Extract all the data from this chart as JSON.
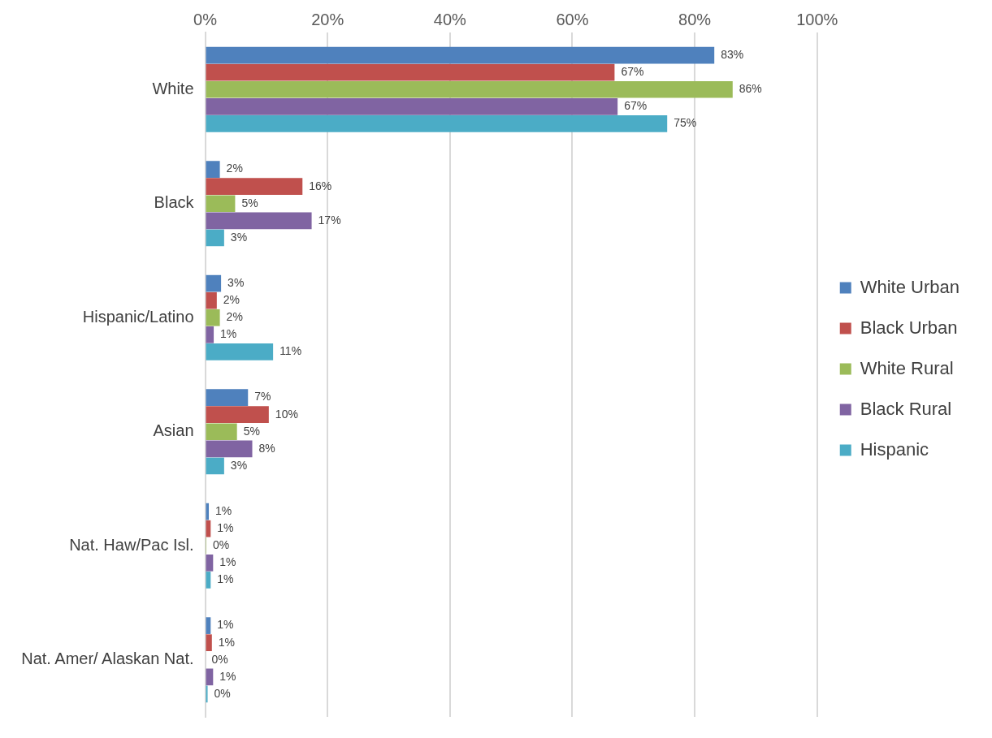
{
  "chart_data": {
    "type": "bar",
    "orientation": "horizontal",
    "categories": [
      "White",
      "Black",
      "Hispanic/Latino",
      "Asian",
      "Nat. Haw/Pac Isl.",
      "Nat. Amer/ Alaskan Nat."
    ],
    "series": [
      {
        "name": "White Urban",
        "color": "#4f81bd",
        "values": [
          83.2,
          2.4,
          2.6,
          7,
          0.6,
          0.9
        ],
        "value_labels": [
          "83%",
          "2%",
          "3%",
          "7%",
          "1%",
          "1%"
        ]
      },
      {
        "name": "Black Urban",
        "color": "#c0504d",
        "values": [
          66.9,
          15.9,
          1.9,
          10.4,
          0.9,
          1.1
        ],
        "value_labels": [
          "67%",
          "16%",
          "2%",
          "10%",
          "1%",
          "1%"
        ]
      },
      {
        "name": "White Rural",
        "color": "#9bbb59",
        "values": [
          86.2,
          4.9,
          2.4,
          5.2,
          0.2,
          0
        ],
        "value_labels": [
          "86%",
          "5%",
          "2%",
          "5%",
          "0%",
          "0%"
        ]
      },
      {
        "name": "Black Rural",
        "color": "#8064a2",
        "values": [
          67.4,
          17.4,
          1.4,
          7.7,
          1.3,
          1.3
        ],
        "value_labels": [
          "67%",
          "17%",
          "1%",
          "8%",
          "1%",
          "1%"
        ]
      },
      {
        "name": "Hispanic",
        "color": "#4bacc6",
        "values": [
          75.5,
          3.1,
          11.1,
          3.1,
          0.9,
          0.4
        ],
        "value_labels": [
          "75%",
          "3%",
          "11%",
          "3%",
          "1%",
          "0%"
        ]
      }
    ],
    "xlim": [
      0,
      100
    ],
    "xticks": [
      {
        "value": 0,
        "label": "0%"
      },
      {
        "value": 20,
        "label": "20%"
      },
      {
        "value": 40,
        "label": "40%"
      },
      {
        "value": 60,
        "label": "60%"
      },
      {
        "value": 80,
        "label": "80%"
      },
      {
        "value": 100,
        "label": "100%"
      }
    ],
    "grid": "x",
    "legend": "right"
  }
}
